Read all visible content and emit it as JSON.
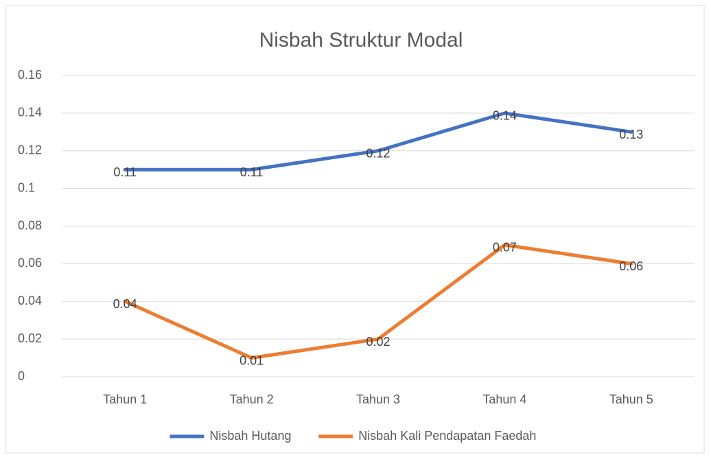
{
  "chart_data": {
    "type": "line",
    "title": "Nisbah Struktur Modal",
    "categories": [
      "Tahun 1",
      "Tahun 2",
      "Tahun 3",
      "Tahun 4",
      "Tahun 5"
    ],
    "series": [
      {
        "name": "Nisbah Hutang",
        "color": "#4472c4",
        "values": [
          0.11,
          0.11,
          0.12,
          0.14,
          0.13
        ]
      },
      {
        "name": "Nisbah Kali Pendapatan Faedah",
        "color": "#ed7d31",
        "values": [
          0.04,
          0.01,
          0.02,
          0.07,
          0.06
        ]
      }
    ],
    "ylim": [
      0,
      0.16
    ],
    "yticks": [
      0,
      0.02,
      0.04,
      0.06,
      0.08,
      0.1,
      0.12,
      0.14,
      0.16
    ],
    "grid": true,
    "legend": "bottom",
    "data_labels": true
  }
}
